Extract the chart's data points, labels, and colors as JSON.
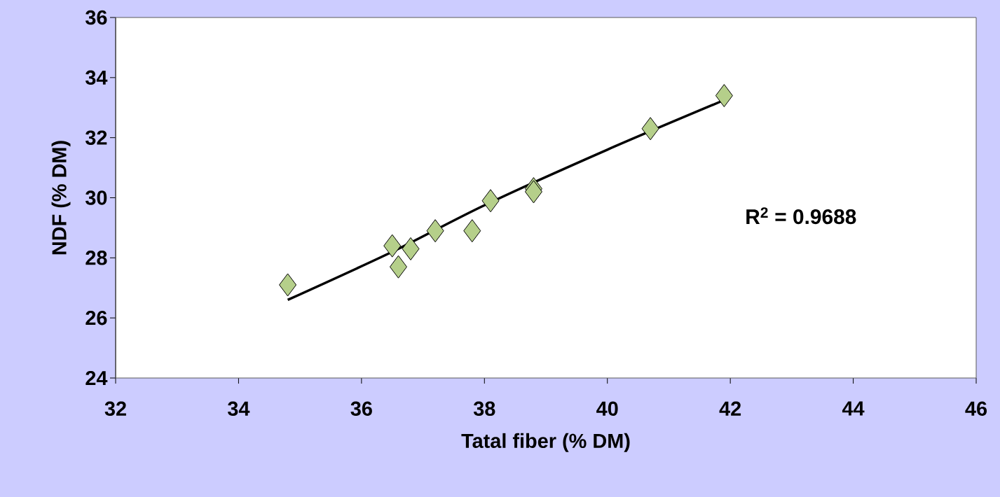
{
  "chart_data": {
    "type": "scatter",
    "xlabel": "Tatal fiber (% DM)",
    "ylabel": "NDF (% DM)",
    "xlim": [
      32,
      46
    ],
    "xticks": [
      32,
      34,
      36,
      38,
      40,
      42,
      44,
      46
    ],
    "ylim": [
      24,
      36
    ],
    "yticks": [
      24,
      26,
      28,
      30,
      32,
      34,
      36
    ],
    "marker": "diamond",
    "grid": false,
    "annotations": [
      {
        "text": "R$^{2}$ = 0.9688"
      }
    ],
    "series": [
      {
        "color": "#b5cf8a",
        "x": [
          34.8,
          36.5,
          36.6,
          36.8,
          37.2,
          37.8,
          38.1,
          38.8,
          38.8,
          40.7,
          41.9
        ],
        "values": [
          27.1,
          28.4,
          27.7,
          28.3,
          28.9,
          28.9,
          29.9,
          30.3,
          30.2,
          32.3,
          33.4
        ]
      },
      {
        "type": "line",
        "marker": "none",
        "color": "#000000",
        "x": [
          34.8,
          36.5,
          38.0,
          40.0,
          41.9
        ],
        "values": [
          26.6,
          28.2,
          29.75,
          31.6,
          33.25
        ]
      }
    ]
  }
}
